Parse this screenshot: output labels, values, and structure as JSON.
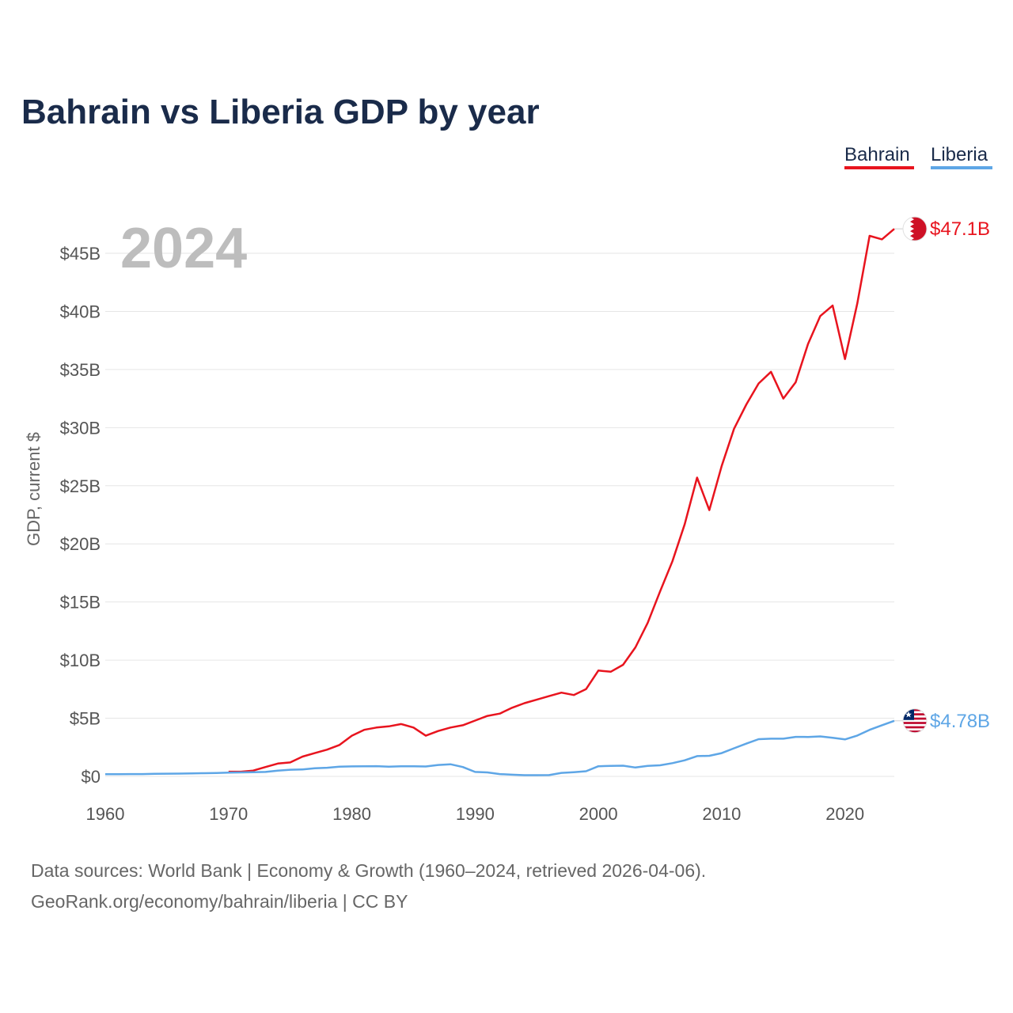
{
  "chart_data": {
    "type": "line",
    "title": "Bahrain vs Liberia GDP by year",
    "ylabel": "GDP, current $",
    "xlabel": "",
    "year_marker": "2024",
    "xlim": [
      1960,
      2024
    ],
    "ylim": [
      0,
      47100000000
    ],
    "x_ticks": [
      1960,
      1970,
      1980,
      1990,
      2000,
      2010,
      2020
    ],
    "x_tick_labels": [
      "1960",
      "1970",
      "1980",
      "1990",
      "2000",
      "2010",
      "2020"
    ],
    "y_ticks": [
      0,
      5000000000,
      10000000000,
      15000000000,
      20000000000,
      25000000000,
      30000000000,
      35000000000,
      40000000000,
      45000000000
    ],
    "y_tick_labels": [
      "$0",
      "$5B",
      "$10B",
      "$15B",
      "$20B",
      "$25B",
      "$30B",
      "$35B",
      "$40B",
      "$45B"
    ],
    "grid": true,
    "legend": "top-right",
    "series": [
      {
        "name": "Bahrain",
        "color": "#e8141e",
        "end_label": "$47.1B",
        "flag_icon": "bahrain-flag-icon",
        "x": [
          1970,
          1971,
          1972,
          1973,
          1974,
          1975,
          1976,
          1977,
          1978,
          1979,
          1980,
          1981,
          1982,
          1983,
          1984,
          1985,
          1986,
          1987,
          1988,
          1989,
          1990,
          1991,
          1992,
          1993,
          1994,
          1995,
          1996,
          1997,
          1998,
          1999,
          2000,
          2001,
          2002,
          2003,
          2004,
          2005,
          2006,
          2007,
          2008,
          2009,
          2010,
          2011,
          2012,
          2013,
          2014,
          2015,
          2016,
          2017,
          2018,
          2019,
          2020,
          2021,
          2022,
          2023,
          2024
        ],
        "values": [
          0.4,
          0.4,
          0.5,
          0.8,
          1.1,
          1.2,
          1.7,
          2.0,
          2.3,
          2.7,
          3.5,
          4.0,
          4.2,
          4.3,
          4.5,
          4.2,
          3.5,
          3.9,
          4.2,
          4.4,
          4.8,
          5.2,
          5.4,
          5.9,
          6.3,
          6.6,
          6.9,
          7.2,
          7.0,
          7.5,
          9.1,
          9.0,
          9.6,
          11.1,
          13.2,
          15.9,
          18.5,
          21.7,
          25.7,
          22.9,
          26.7,
          29.9,
          32.0,
          33.8,
          34.8,
          32.5,
          33.9,
          37.2,
          39.6,
          40.5,
          35.9,
          40.7,
          46.5,
          46.2,
          47.1
        ]
      },
      {
        "name": "Liberia",
        "color": "#5ea6e6",
        "end_label": "$4.78B",
        "flag_icon": "liberia-flag-icon",
        "x": [
          1960,
          1961,
          1962,
          1963,
          1964,
          1965,
          1966,
          1967,
          1968,
          1969,
          1970,
          1971,
          1972,
          1973,
          1974,
          1975,
          1976,
          1977,
          1978,
          1979,
          1980,
          1981,
          1982,
          1983,
          1984,
          1985,
          1986,
          1987,
          1988,
          1989,
          1990,
          1991,
          1992,
          1993,
          1994,
          1995,
          1996,
          1997,
          1998,
          1999,
          2000,
          2001,
          2002,
          2003,
          2004,
          2005,
          2006,
          2007,
          2008,
          2009,
          2010,
          2011,
          2012,
          2013,
          2014,
          2015,
          2016,
          2017,
          2018,
          2019,
          2020,
          2021,
          2022,
          2023,
          2024
        ],
        "values": [
          0.19,
          0.19,
          0.2,
          0.2,
          0.22,
          0.23,
          0.24,
          0.26,
          0.27,
          0.29,
          0.32,
          0.34,
          0.36,
          0.38,
          0.5,
          0.57,
          0.6,
          0.7,
          0.74,
          0.83,
          0.86,
          0.87,
          0.88,
          0.84,
          0.87,
          0.87,
          0.85,
          0.98,
          1.04,
          0.8,
          0.38,
          0.34,
          0.2,
          0.14,
          0.1,
          0.1,
          0.11,
          0.3,
          0.36,
          0.44,
          0.87,
          0.9,
          0.92,
          0.76,
          0.9,
          0.95,
          1.14,
          1.38,
          1.74,
          1.77,
          2.0,
          2.42,
          2.82,
          3.2,
          3.24,
          3.24,
          3.4,
          3.39,
          3.44,
          3.32,
          3.18,
          3.51,
          4.0,
          4.4,
          4.78
        ]
      }
    ]
  },
  "source": {
    "line1": "Data sources: World Bank | Economy & Growth (1960–2024, retrieved 2026-04-06).",
    "line2": "GeoRank.org/economy/bahrain/liberia | CC BY"
  }
}
